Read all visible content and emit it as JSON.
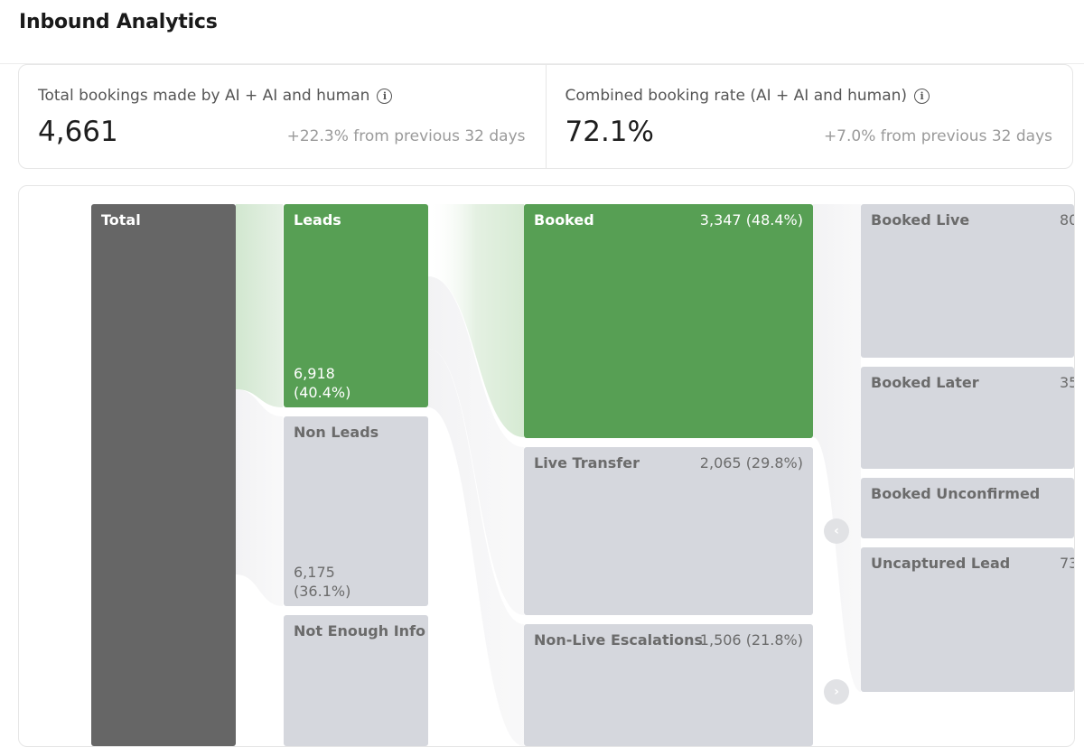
{
  "page": {
    "title": "Inbound Analytics"
  },
  "kpis": [
    {
      "label": "Total bookings made by AI + AI and human",
      "value": "4,661",
      "delta": "+22.3% from previous 32 days"
    },
    {
      "label": "Combined booking rate (AI + AI and human)",
      "value": "72.1%",
      "delta": "+7.0% from previous 32 days"
    }
  ],
  "flow": {
    "total": {
      "label": "Total"
    },
    "stage1": [
      {
        "label": "Leads",
        "value_line1": "6,918",
        "value_line2": "(40.4%)"
      },
      {
        "label": "Non Leads",
        "value_line1": "6,175",
        "value_line2": "(36.1%)"
      },
      {
        "label": "Not Enough Info"
      }
    ],
    "stage2": [
      {
        "label": "Booked",
        "value": "3,347 (48.4%)"
      },
      {
        "label": "Live Transfer",
        "value": "2,065 (29.8%)"
      },
      {
        "label": "Non-Live Escalations",
        "value": "1,506 (21.8%)"
      }
    ],
    "stage3": [
      {
        "label": "Booked Live",
        "value": "80"
      },
      {
        "label": "Booked Later",
        "value": "35"
      },
      {
        "label": "Booked Unconfirmed"
      },
      {
        "label": "Uncaptured Lead",
        "value": "73"
      }
    ]
  },
  "controls": {
    "prev_icon": "‹",
    "next_icon": "›"
  },
  "colors": {
    "accent_green": "#579f54",
    "total_dark": "#666666",
    "node_grey": "#d5d7dd"
  }
}
